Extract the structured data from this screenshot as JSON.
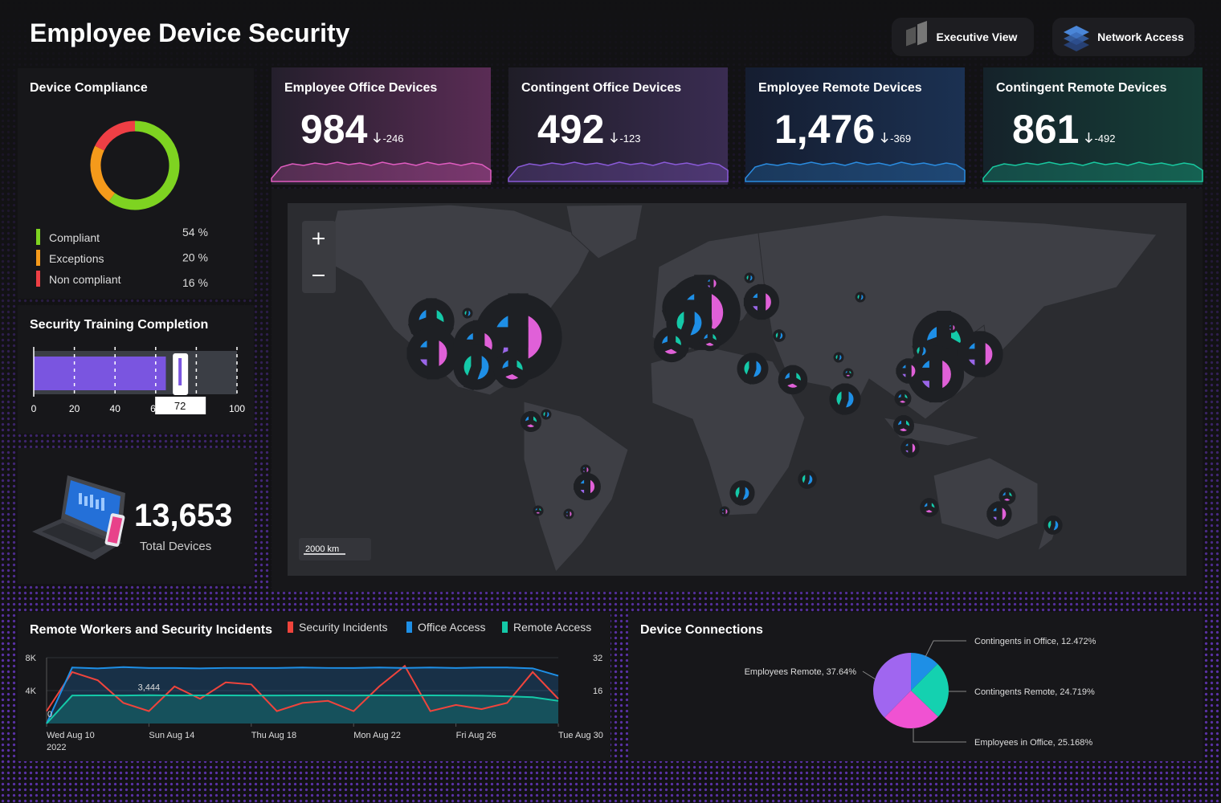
{
  "header": {
    "title": "Employee Device Security",
    "buttons": [
      "Executive View",
      "Network Access"
    ]
  },
  "kpis": [
    {
      "title": "Employee Office Devices",
      "value": "984",
      "delta": "-246"
    },
    {
      "title": "Contingent Office Devices",
      "value": "492",
      "delta": "-123"
    },
    {
      "title": "Employee Remote Devices",
      "value": "1,476",
      "delta": "-369"
    },
    {
      "title": "Contingent Remote Devices",
      "value": "861",
      "delta": "-492"
    }
  ],
  "total_devices": {
    "value": "13,653",
    "label": "Total Devices"
  },
  "map": {
    "scale_label": "2000 km"
  },
  "chart_data": [
    {
      "type": "donut",
      "title": "Device Compliance",
      "categories": [
        "Compliant",
        "Exceptions",
        "Non compliant"
      ],
      "values": [
        54,
        20,
        16
      ],
      "value_labels": [
        "54 %",
        "20 %",
        "16 %"
      ],
      "colors": [
        "#7ed321",
        "#f59a1b",
        "#ee3f45"
      ]
    },
    {
      "type": "bullet",
      "title": "Security Training Completion",
      "value": 65,
      "target": 72,
      "color": "#7a55e0",
      "xlim": [
        0,
        100
      ],
      "xticks": [
        0,
        20,
        40,
        60,
        80,
        100
      ]
    },
    {
      "type": "line",
      "title": "Remote Workers and Security Incidents",
      "x": [
        "2022-08-10",
        "2022-08-11",
        "2022-08-12",
        "2022-08-13",
        "2022-08-14",
        "2022-08-15",
        "2022-08-16",
        "2022-08-17",
        "2022-08-18",
        "2022-08-19",
        "2022-08-20",
        "2022-08-21",
        "2022-08-22",
        "2022-08-23",
        "2022-08-24",
        "2022-08-25",
        "2022-08-26",
        "2022-08-27",
        "2022-08-28",
        "2022-08-29",
        "2022-08-30"
      ],
      "xticks": [
        {
          "value": "2022-08-10",
          "label": "Wed Aug 10\n2022"
        },
        {
          "value": "2022-08-14",
          "label": "Sun Aug 14"
        },
        {
          "value": "2022-08-18",
          "label": "Thu Aug 18"
        },
        {
          "value": "2022-08-22",
          "label": "Mon Aug 22"
        },
        {
          "value": "2022-08-26",
          "label": "Fri Aug 26"
        },
        {
          "value": "2022-08-30",
          "label": "Tue Aug 30"
        }
      ],
      "series": [
        {
          "name": "Security Incidents",
          "color": "#f0443c",
          "axis": "y2",
          "values": [
            6,
            25,
            21,
            10,
            6,
            18,
            12,
            20,
            19,
            6,
            10,
            11,
            6,
            18,
            28,
            6,
            9,
            7,
            10,
            25,
            12
          ]
        },
        {
          "name": "Office Access",
          "color": "#1e8fe6",
          "values": [
            0,
            6800,
            6700,
            6850,
            6750,
            6750,
            6700,
            6750,
            6750,
            6750,
            6800,
            6750,
            6750,
            6800,
            6750,
            6800,
            6750,
            6800,
            6800,
            6700,
            5800
          ],
          "value_labels": [
            "0",
            null,
            null,
            null,
            null,
            null,
            null,
            null,
            null,
            null,
            null,
            null,
            null,
            null,
            null,
            null,
            null,
            null,
            null,
            null,
            null
          ]
        },
        {
          "name": "Remote Access",
          "color": "#14c9a8",
          "values": [
            0,
            3400,
            3420,
            3400,
            3444,
            3400,
            3420,
            3410,
            3400,
            3400,
            3420,
            3410,
            3400,
            3420,
            3400,
            3410,
            3400,
            3380,
            3300,
            3200,
            2750
          ],
          "value_labels": [
            null,
            null,
            null,
            null,
            "3,444",
            null,
            null,
            null,
            null,
            null,
            null,
            null,
            null,
            null,
            null,
            null,
            null,
            null,
            null,
            null,
            null
          ]
        }
      ],
      "ylim": [
        0,
        8000
      ],
      "yticks": [
        {
          "value": 4000,
          "label": "4K"
        },
        {
          "value": 8000,
          "label": "8K"
        }
      ],
      "y2lim": [
        0,
        32
      ],
      "y2ticks": [
        16,
        32
      ],
      "grid": true
    },
    {
      "type": "pie",
      "title": "Device Connections",
      "values": [
        12.472,
        24.719,
        25.168,
        37.64
      ],
      "value_labels": [
        "Contingents in Office, 12.472%",
        "Contingents Remote, 24.719%",
        "Employees in Office, 25.168%",
        "Employees Remote, 37.64%"
      ],
      "colors": [
        "#1e8fe6",
        "#14d1b0",
        "#f052d2",
        "#a066f0"
      ]
    }
  ]
}
